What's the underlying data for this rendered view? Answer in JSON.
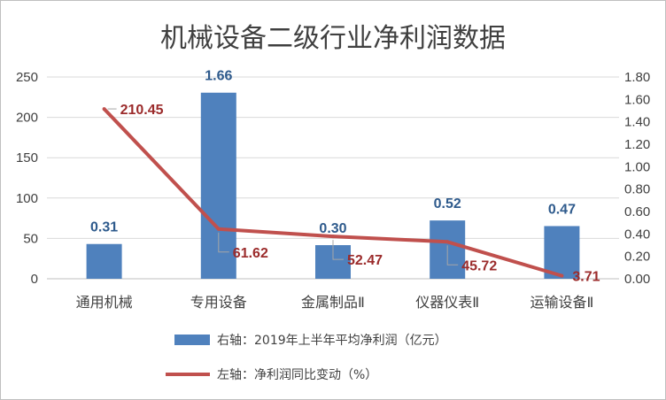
{
  "chart_data": {
    "type": "bar+line",
    "title": "机械设备二级行业净利润数据",
    "categories": [
      "通用机械",
      "专用设备",
      "金属制品Ⅱ",
      "仪器仪表Ⅱ",
      "运输设备Ⅱ"
    ],
    "series": [
      {
        "name": "右轴：2019年上半年平均净利润（亿元）",
        "type": "bar",
        "axis": "right",
        "values": [
          0.31,
          1.66,
          0.3,
          0.52,
          0.47
        ],
        "labels": [
          "0.31",
          "1.66",
          "0.30",
          "0.52",
          "0.47"
        ],
        "color": "#4f81bd"
      },
      {
        "name": "左轴：净利润同比变动（%）",
        "type": "line",
        "axis": "left",
        "values": [
          210.45,
          61.62,
          52.47,
          45.72,
          3.71
        ],
        "labels": [
          "210.45",
          "61.62",
          "52.47",
          "45.72",
          "3.71"
        ],
        "color": "#c0504d"
      }
    ],
    "left_axis": {
      "ylim": [
        0,
        250
      ],
      "ticks": [
        "0",
        "50",
        "100",
        "150",
        "200",
        "250"
      ]
    },
    "right_axis": {
      "ylim": [
        0,
        1.8
      ],
      "ticks": [
        "0.00",
        "0.20",
        "0.40",
        "0.60",
        "0.80",
        "1.00",
        "1.20",
        "1.40",
        "1.60",
        "1.80"
      ]
    },
    "grid": true,
    "legend_position": "bottom"
  }
}
